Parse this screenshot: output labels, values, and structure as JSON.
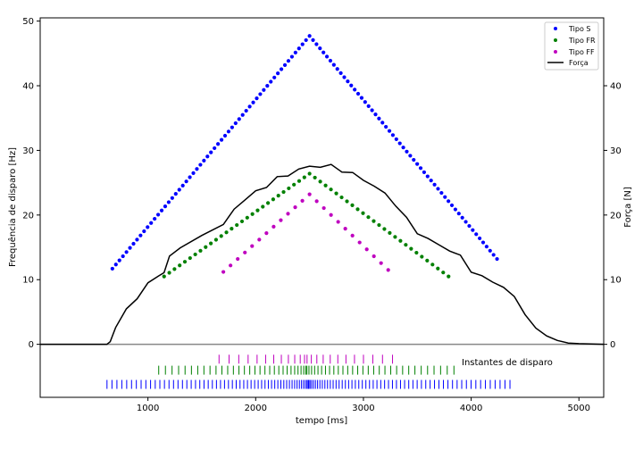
{
  "chart_data": {
    "type": "scatter",
    "xlabel": "tempo [ms]",
    "ylabel_left": "Frequência de disparo [Hz]",
    "ylabel_right": "Força [N]",
    "xlim": [
      0,
      5230
    ],
    "ylim_left": [
      -8.2,
      50.5
    ],
    "ylim_right": [
      -8.2,
      50.5
    ],
    "x_ticks": [
      1000,
      2000,
      3000,
      4000,
      5000
    ],
    "y_ticks_left": [
      0,
      10,
      20,
      30,
      40,
      50
    ],
    "y_ticks_right": [
      0,
      10,
      20,
      30,
      40
    ],
    "annotation": "Instantes de disparo",
    "legend": {
      "position": "top-right",
      "entries": [
        {
          "label": "Tipo S",
          "color": "#0000ff",
          "marker": "dot"
        },
        {
          "label": "Tipo FR",
          "color": "#008000",
          "marker": "dot"
        },
        {
          "label": "Tipo FF",
          "color": "#bf00bf",
          "marker": "dot"
        },
        {
          "label": "Força",
          "color": "#000000",
          "marker": "line"
        }
      ]
    },
    "series": [
      {
        "name": "Tipo S",
        "color": "#0000ff",
        "axis": "left",
        "start": 670,
        "peak": 2500,
        "end": 4240,
        "y_start": 11.7,
        "y_peak": 47.7,
        "y_end": 13.2,
        "n_rise": 56,
        "n_fall": 54
      },
      {
        "name": "Tipo FR",
        "color": "#008000",
        "axis": "left",
        "start": 1150,
        "peak": 2500,
        "end": 3790,
        "y_start": 10.5,
        "y_peak": 26.4,
        "y_end": 10.5,
        "n_rise": 28,
        "n_fall": 26
      },
      {
        "name": "Tipo FF",
        "color": "#bf00bf",
        "axis": "left",
        "start": 1700,
        "peak": 2500,
        "end": 3230,
        "y_start": 11.2,
        "y_peak": 23.2,
        "y_end": 11.5,
        "n_rise": 12,
        "n_fall": 11
      },
      {
        "name": "Força",
        "color": "#000000",
        "axis": "right",
        "points": [
          [
            0,
            0
          ],
          [
            620,
            0
          ],
          [
            650,
            0.4
          ],
          [
            700,
            2.6
          ],
          [
            800,
            5.2
          ],
          [
            900,
            7.4
          ],
          [
            1000,
            9.2
          ],
          [
            1100,
            10.8
          ],
          [
            1150,
            11.4
          ],
          [
            1200,
            13.6
          ],
          [
            1300,
            14.8
          ],
          [
            1500,
            16.5
          ],
          [
            1700,
            18.3
          ],
          [
            1800,
            21.0
          ],
          [
            1900,
            22.4
          ],
          [
            2000,
            23.5
          ],
          [
            2100,
            24.6
          ],
          [
            2200,
            25.6
          ],
          [
            2300,
            26.3
          ],
          [
            2400,
            27.0
          ],
          [
            2500,
            27.5
          ],
          [
            2600,
            27.6
          ],
          [
            2700,
            27.5
          ],
          [
            2800,
            27.0
          ],
          [
            2900,
            26.3
          ],
          [
            3000,
            25.5
          ],
          [
            3100,
            24.5
          ],
          [
            3200,
            23.2
          ],
          [
            3300,
            21.7
          ],
          [
            3400,
            19.3
          ],
          [
            3500,
            17.4
          ],
          [
            3600,
            16.2
          ],
          [
            3700,
            15.4
          ],
          [
            3800,
            14.6
          ],
          [
            3900,
            13.5
          ],
          [
            4000,
            11.5
          ],
          [
            4100,
            10.3
          ],
          [
            4200,
            9.8
          ],
          [
            4300,
            8.8
          ],
          [
            4400,
            7.4
          ],
          [
            4500,
            4.6
          ],
          [
            4600,
            2.5
          ],
          [
            4700,
            1.3
          ],
          [
            4800,
            0.6
          ],
          [
            4900,
            0.2
          ],
          [
            5000,
            0.1
          ],
          [
            5230,
            0.0
          ]
        ]
      }
    ],
    "spikes": [
      {
        "name": "Tipo FF",
        "color": "#bf00bf",
        "y_center": -2.3,
        "start": 1660,
        "end": 3270,
        "count": 24
      },
      {
        "name": "Tipo FR",
        "color": "#008000",
        "y_center": -4.0,
        "start": 1100,
        "end": 3840,
        "count": 60
      },
      {
        "name": "Tipo S",
        "color": "#0000ff",
        "y_center": -6.2,
        "start": 620,
        "end": 4360,
        "count": 110
      }
    ]
  }
}
